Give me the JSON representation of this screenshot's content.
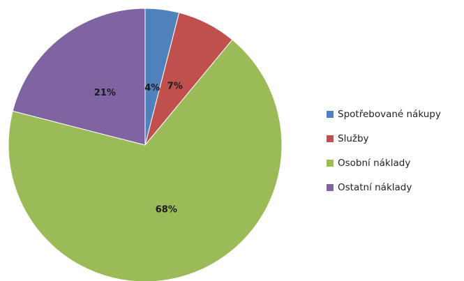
{
  "chart_data": {
    "type": "pie",
    "categories": [
      "Spotřebované nákupy",
      "Služby",
      "Osobní náklady",
      "Ostatní náklady"
    ],
    "values": [
      4,
      7,
      68,
      21
    ],
    "labels": [
      "4%",
      "7%",
      "68%",
      "21%"
    ],
    "colors": [
      "#4f81bd",
      "#c0504d",
      "#9bbb59",
      "#8064a2"
    ],
    "legend_position": "right",
    "start_angle": "12 o'clock, clockwise"
  }
}
